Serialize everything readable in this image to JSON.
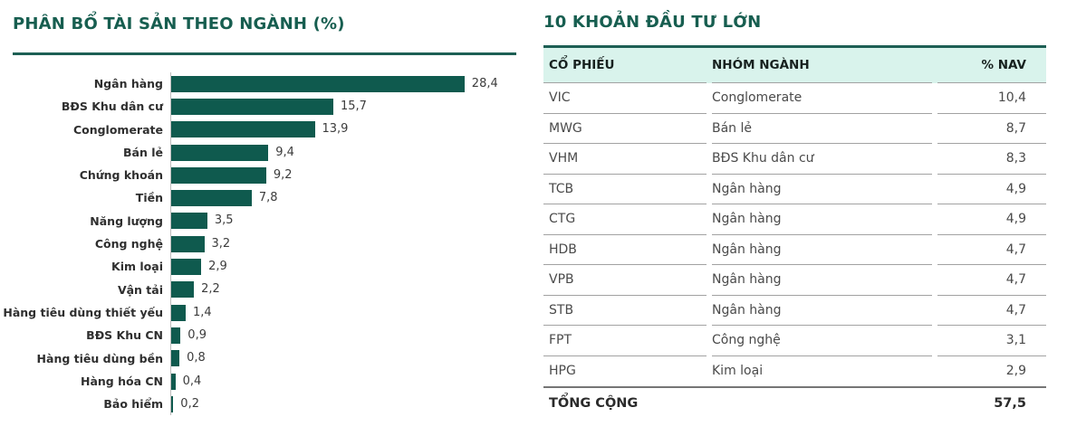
{
  "chart_data": {
    "type": "bar",
    "orientation": "horizontal",
    "title": "PHÂN BỔ TÀI SẢN THEO NGÀNH (%)",
    "categories": [
      "Ngân hàng",
      "BĐS Khu dân cư",
      "Conglomerate",
      "Bán lẻ",
      "Chứng khoán",
      "Tiền",
      "Năng lượng",
      "Công nghệ",
      "Kim loại",
      "Vận tải",
      "Hàng tiêu dùng thiết yếu",
      "BĐS Khu CN",
      "Hàng tiêu dùng bền",
      "Hàng hóa CN",
      "Bảo hiểm"
    ],
    "values": [
      28.4,
      15.7,
      13.9,
      9.4,
      9.2,
      7.8,
      3.5,
      3.2,
      2.9,
      2.2,
      1.4,
      0.9,
      0.8,
      0.4,
      0.2
    ],
    "value_labels": [
      "28,4",
      "15,7",
      "13,9",
      "9,4",
      "9,2",
      "7,8",
      "3,5",
      "3,2",
      "2,9",
      "2,2",
      "1,4",
      "0,9",
      "0,8",
      "0,4",
      "0,2"
    ],
    "xlim": [
      0,
      30
    ],
    "grid": false,
    "legend": "none",
    "bar_color": "#0f5a4e"
  },
  "table": {
    "title": "10 KHOẢN ĐẦU TƯ LỚN",
    "columns": [
      "CỔ PHIẾU",
      "NHÓM NGÀNH",
      "% NAV"
    ],
    "rows": [
      [
        "VIC",
        "Conglomerate",
        "10,4"
      ],
      [
        "MWG",
        "Bán lẻ",
        "8,7"
      ],
      [
        "VHM",
        "BĐS Khu dân cư",
        "8,3"
      ],
      [
        "TCB",
        "Ngân hàng",
        "4,9"
      ],
      [
        "CTG",
        "Ngân hàng",
        "4,9"
      ],
      [
        "HDB",
        "Ngân hàng",
        "4,7"
      ],
      [
        "VPB",
        "Ngân hàng",
        "4,7"
      ],
      [
        "STB",
        "Ngân hàng",
        "4,7"
      ],
      [
        "FPT",
        "Công nghệ",
        "3,1"
      ],
      [
        "HPG",
        "Kim loại",
        "2,9"
      ]
    ],
    "total": {
      "label": "TỔNG CỘNG",
      "value": "57,5"
    }
  },
  "colors": {
    "accent_green": "#175e50",
    "bar_green": "#0f5a4e",
    "header_mint": "#d9f3ec",
    "divider_gray": "#a2a2a2",
    "total_divider_gray": "#757575"
  }
}
